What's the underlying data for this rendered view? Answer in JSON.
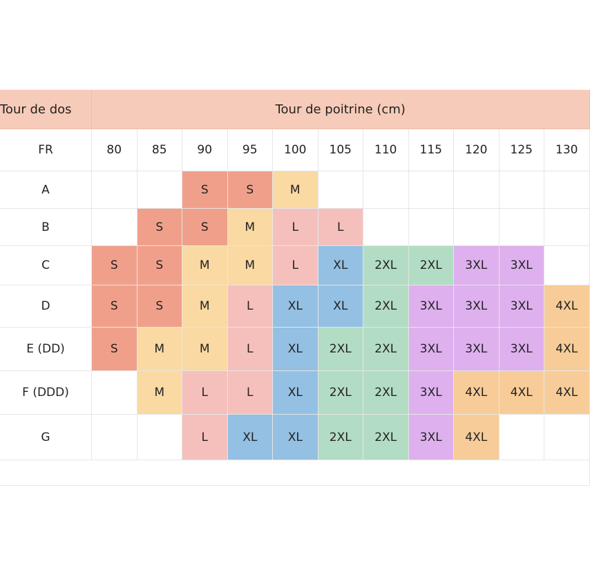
{
  "header": {
    "row_label": "Tour de dos",
    "columns_label": "Tour de poitrine (cm)"
  },
  "table": {
    "corner": "FR",
    "columns": [
      80,
      85,
      90,
      95,
      100,
      105,
      110,
      115,
      120,
      125,
      130
    ],
    "rows": [
      {
        "label": "A",
        "cells": [
          null,
          null,
          "S",
          "S",
          "M",
          null,
          null,
          null,
          null,
          null,
          null
        ]
      },
      {
        "label": "B",
        "cells": [
          null,
          "S",
          "S",
          "M",
          "L",
          "L",
          null,
          null,
          null,
          null,
          null
        ]
      },
      {
        "label": "C",
        "cells": [
          "S",
          "S",
          "M",
          "M",
          "L",
          "XL",
          "2XL",
          "2XL",
          "3XL",
          "3XL",
          null
        ]
      },
      {
        "label": "D",
        "cells": [
          "S",
          "S",
          "M",
          "L",
          "XL",
          "XL",
          "2XL",
          "3XL",
          "3XL",
          "3XL",
          "4XL"
        ]
      },
      {
        "label": "E (DD)",
        "cells": [
          "S",
          "M",
          "M",
          "L",
          "XL",
          "2XL",
          "2XL",
          "3XL",
          "3XL",
          "3XL",
          "4XL"
        ]
      },
      {
        "label": "F (DDD)",
        "cells": [
          null,
          "M",
          "L",
          "L",
          "XL",
          "2XL",
          "2XL",
          "3XL",
          "4XL",
          "4XL",
          "4XL"
        ]
      },
      {
        "label": "G",
        "cells": [
          null,
          null,
          "L",
          "XL",
          "XL",
          "2XL",
          "2XL",
          "3XL",
          "4XL",
          null,
          null
        ]
      }
    ]
  },
  "colors": {
    "S": "#f0a08a",
    "M": "#fad9a3",
    "L": "#f5c0bc",
    "XL": "#94c0e3",
    "2XL": "#b3dcc4",
    "3XL": "#deb0ee",
    "4XL": "#f8cc98"
  }
}
